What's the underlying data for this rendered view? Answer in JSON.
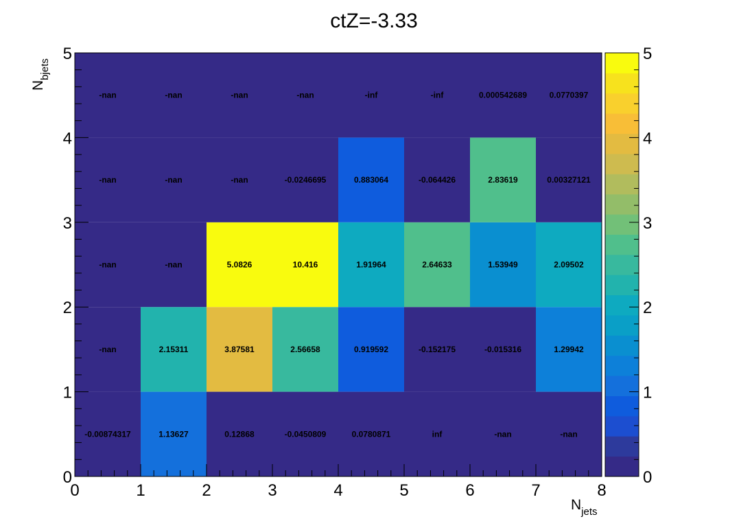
{
  "chart_data": {
    "type": "heatmap",
    "title": "ctZ=-3.33",
    "xlabel": {
      "main": "N",
      "sub": "jets"
    },
    "ylabel": {
      "main": "N",
      "sub": "bjets"
    },
    "x_edges": [
      0,
      1,
      2,
      3,
      4,
      5,
      6,
      7,
      8
    ],
    "y_edges": [
      0,
      1,
      2,
      3,
      4,
      5
    ],
    "xlim": [
      0,
      8
    ],
    "ylim": [
      0,
      5
    ],
    "x_tick_labels": [
      "0",
      "1",
      "2",
      "3",
      "4",
      "5",
      "6",
      "7",
      "8"
    ],
    "y_tick_labels": [
      "0",
      "1",
      "2",
      "3",
      "4",
      "5"
    ],
    "zlim": [
      0,
      5
    ],
    "colorbar_tick_labels": [
      "0",
      "1",
      "2",
      "3",
      "4",
      "5"
    ],
    "palette": [
      "#352a87",
      "#2d3a9c",
      "#1c4ed0",
      "#0f5cdd",
      "#1470dc",
      "#0d80d9",
      "#0a8fd0",
      "#0a9fc7",
      "#0eaac0",
      "#22b3ad",
      "#38b99e",
      "#50bf8c",
      "#72c078",
      "#93bd69",
      "#b1bc5d",
      "#cebb4f",
      "#e3bb41",
      "#f8be37",
      "#f9d02d",
      "#f7e21d",
      "#f9fb0e"
    ],
    "underflow_color": "#352a87",
    "overflow_color": "#f9fb0e",
    "cells": [
      [
        {
          "label": "-0.00874317",
          "value": -0.00874317
        },
        {
          "label": "1.13627",
          "value": 1.13627
        },
        {
          "label": "0.12868",
          "value": 0.12868
        },
        {
          "label": "-0.0450809",
          "value": -0.0450809
        },
        {
          "label": "0.0780871",
          "value": 0.0780871
        },
        {
          "label": "inf",
          "value": null
        },
        {
          "label": "-nan",
          "value": null
        },
        {
          "label": "-nan",
          "value": null
        }
      ],
      [
        {
          "label": "-nan",
          "value": null
        },
        {
          "label": "2.15311",
          "value": 2.15311
        },
        {
          "label": "3.87581",
          "value": 3.87581
        },
        {
          "label": "2.56658",
          "value": 2.56658
        },
        {
          "label": "0.919592",
          "value": 0.919592
        },
        {
          "label": "-0.152175",
          "value": -0.152175
        },
        {
          "label": "-0.015316",
          "value": -0.015316
        },
        {
          "label": "1.29942",
          "value": 1.29942
        }
      ],
      [
        {
          "label": "-nan",
          "value": null
        },
        {
          "label": "-nan",
          "value": null
        },
        {
          "label": "5.0826",
          "value": 5.0826
        },
        {
          "label": "10.416",
          "value": 10.416
        },
        {
          "label": "1.91964",
          "value": 1.91964
        },
        {
          "label": "2.64633",
          "value": 2.64633
        },
        {
          "label": "1.53949",
          "value": 1.53949
        },
        {
          "label": "2.09502",
          "value": 2.09502
        }
      ],
      [
        {
          "label": "-nan",
          "value": null
        },
        {
          "label": "-nan",
          "value": null
        },
        {
          "label": "-nan",
          "value": null
        },
        {
          "label": "-0.0246695",
          "value": -0.0246695
        },
        {
          "label": "0.883064",
          "value": 0.883064
        },
        {
          "label": "-0.064426",
          "value": -0.064426
        },
        {
          "label": "2.83619",
          "value": 2.83619
        },
        {
          "label": "0.00327121",
          "value": 0.00327121
        }
      ],
      [
        {
          "label": "-nan",
          "value": null
        },
        {
          "label": "-nan",
          "value": null
        },
        {
          "label": "-nan",
          "value": null
        },
        {
          "label": "-nan",
          "value": null
        },
        {
          "label": "-inf",
          "value": null
        },
        {
          "label": "-inf",
          "value": null
        },
        {
          "label": "0.000542689",
          "value": 0.000542689
        },
        {
          "label": "0.0770397",
          "value": 0.0770397
        }
      ]
    ]
  }
}
